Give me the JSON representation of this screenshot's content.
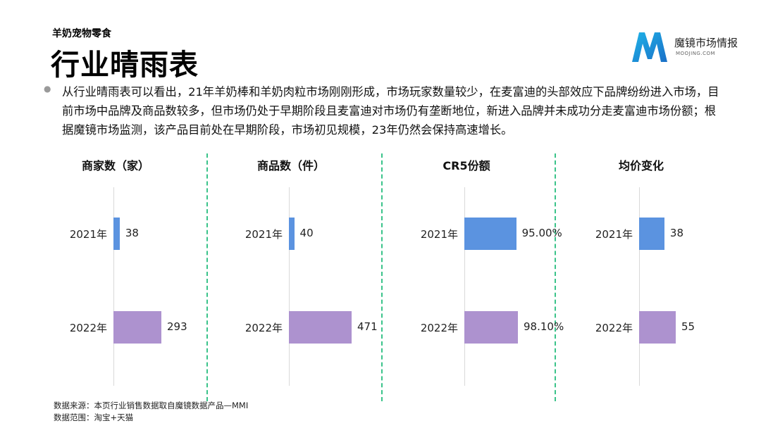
{
  "header": {
    "subtitle": "羊奶宠物零食",
    "title": "行业晴雨表"
  },
  "logo": {
    "name": "魔镜市场情报",
    "domain": "MOOJING.COM"
  },
  "description": "从行业晴雨表可以看出，21年羊奶棒和羊奶肉粒市场刚刚形成，市场玩家数量较少，在麦富迪的头部效应下品牌纷纷进入市场，目前市场中品牌及商品数较多，但市场仍处于早期阶段且麦富迪对市场仍有垄断地位，新进入品牌并未成功分走麦富迪市场份额；根据魔镜市场监测，该产品目前处在早期阶段，市场初见规模，23年仍然会保持高速增长。",
  "colors": {
    "bar_2021": "#5b93e0",
    "bar_2022": "#ad92cf",
    "divider": "#3ac38a"
  },
  "chart_data": [
    {
      "type": "bar",
      "orientation": "horizontal",
      "title": "商家数（家）",
      "categories": [
        "2021年",
        "2022年"
      ],
      "values": [
        38,
        293
      ],
      "labels": [
        "38",
        "293"
      ]
    },
    {
      "type": "bar",
      "orientation": "horizontal",
      "title": "商品数（件）",
      "categories": [
        "2021年",
        "2022年"
      ],
      "values": [
        40,
        471
      ],
      "labels": [
        "40",
        "471"
      ]
    },
    {
      "type": "bar",
      "orientation": "horizontal",
      "title": "CR5份额",
      "categories": [
        "2021年",
        "2022年"
      ],
      "values": [
        95.0,
        98.1
      ],
      "labels": [
        "95.00%",
        "98.10%"
      ]
    },
    {
      "type": "bar",
      "orientation": "horizontal",
      "title": "均价变化",
      "categories": [
        "2021年",
        "2022年"
      ],
      "values": [
        38,
        55
      ],
      "labels": [
        "38",
        "55"
      ]
    }
  ],
  "footer": {
    "source": "数据来源：本页行业销售数据取自魔镜数据产品—MMI",
    "scope": "数据范围：淘宝+天猫"
  }
}
